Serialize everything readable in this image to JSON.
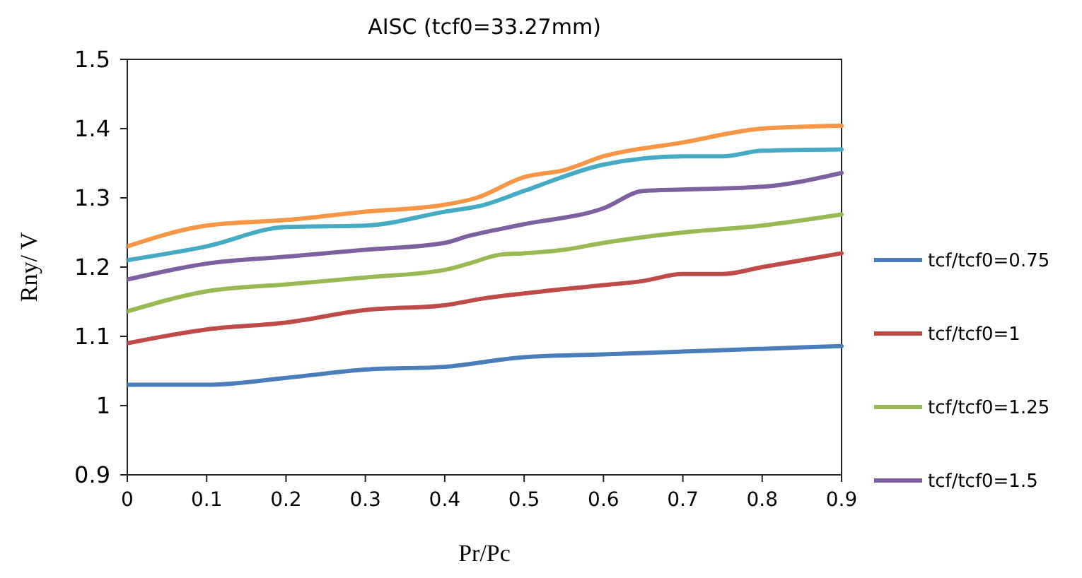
{
  "chart_data": {
    "type": "line",
    "title": "AISC (tcf0=33.27mm)",
    "xlabel": "Pr/Pc",
    "ylabel": "Rny/ V",
    "xlim": [
      0,
      0.9
    ],
    "xticks": [
      0,
      0.1,
      0.2,
      0.3,
      0.4,
      0.5,
      0.6,
      0.7,
      0.8,
      0.9
    ],
    "ylim": [
      0.9,
      1.5
    ],
    "yticks": [
      0.9,
      1,
      1.1,
      1.2,
      1.3,
      1.4,
      1.5
    ],
    "grid": false,
    "legend": "right",
    "marker": "none",
    "line_style": "solid",
    "series": [
      {
        "name": "tcf/tcf0=0.75",
        "color": "#4a7ebb",
        "x": [
          0,
          0.1,
          0.2,
          0.3,
          0.4,
          0.5,
          0.6,
          0.7,
          0.8,
          0.9
        ],
        "values": [
          1.03,
          1.03,
          1.04,
          1.052,
          1.056,
          1.07,
          1.074,
          1.078,
          1.082,
          1.086
        ]
      },
      {
        "name": "tcf/tcf0=1",
        "color": "#be4b48",
        "x": [
          0,
          0.1,
          0.2,
          0.3,
          0.4,
          0.45,
          0.5,
          0.6,
          0.65,
          0.7,
          0.75,
          0.8,
          0.9
        ],
        "values": [
          1.09,
          1.11,
          1.12,
          1.138,
          1.145,
          1.155,
          1.162,
          1.174,
          1.18,
          1.19,
          1.19,
          1.2,
          1.22
        ]
      },
      {
        "name": "tcf/tcf0=1.25",
        "color": "#98b954",
        "x": [
          0,
          0.1,
          0.2,
          0.3,
          0.4,
          0.43,
          0.47,
          0.5,
          0.55,
          0.6,
          0.7,
          0.8,
          0.9
        ],
        "values": [
          1.136,
          1.165,
          1.175,
          1.185,
          1.196,
          1.205,
          1.218,
          1.22,
          1.225,
          1.235,
          1.25,
          1.26,
          1.276
        ]
      },
      {
        "name": "tcf/tcf0=1.5",
        "color": "#7d60a0",
        "x": [
          0,
          0.1,
          0.2,
          0.3,
          0.4,
          0.43,
          0.47,
          0.5,
          0.6,
          0.65,
          0.7,
          0.8,
          0.9
        ],
        "values": [
          1.182,
          1.205,
          1.215,
          1.225,
          1.235,
          1.245,
          1.255,
          1.262,
          1.285,
          1.31,
          1.312,
          1.316,
          1.336
        ]
      },
      {
        "color": "#46aac5",
        "x": [
          0,
          0.1,
          0.2,
          0.3,
          0.4,
          0.45,
          0.5,
          0.6,
          0.7,
          0.75,
          0.8,
          0.9
        ],
        "values": [
          1.21,
          1.23,
          1.258,
          1.26,
          1.28,
          1.29,
          1.31,
          1.348,
          1.36,
          1.36,
          1.368,
          1.37
        ]
      },
      {
        "color": "#f79646",
        "x": [
          0,
          0.1,
          0.2,
          0.3,
          0.4,
          0.44,
          0.5,
          0.55,
          0.6,
          0.7,
          0.8,
          0.9
        ],
        "values": [
          1.23,
          1.26,
          1.268,
          1.28,
          1.29,
          1.3,
          1.33,
          1.34,
          1.36,
          1.38,
          1.4,
          1.404
        ]
      }
    ]
  }
}
